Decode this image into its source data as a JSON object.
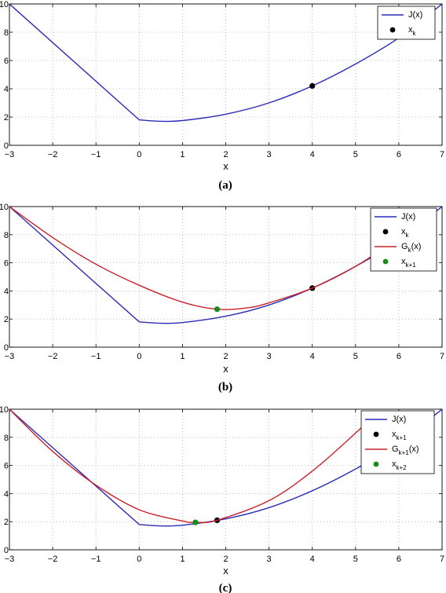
{
  "chart_data": [
    {
      "type": "line",
      "caption": "(a)",
      "xlabel": "x",
      "ylabel": "",
      "xlim": [
        -3,
        7
      ],
      "ylim": [
        0,
        10
      ],
      "xticks": [
        "−3",
        "−2",
        "−1",
        "0",
        "1",
        "2",
        "3",
        "4",
        "5",
        "6",
        "7"
      ],
      "yticks": [
        "0",
        "2",
        "4",
        "6",
        "8",
        "10"
      ],
      "grid": true,
      "legend_position": "top-right",
      "series": [
        {
          "name": "J(x)",
          "kind": "J",
          "color": "#2b2bb8",
          "points": [
            [
              -3,
              10.0
            ],
            [
              0,
              1.8
            ],
            [
              0.5,
              1.7
            ],
            [
              1,
              1.75
            ],
            [
              2,
              2.2
            ],
            [
              3,
              3.0
            ],
            [
              4,
              4.2
            ],
            [
              5,
              5.75
            ],
            [
              6,
              7.6
            ],
            [
              7,
              10.0
            ]
          ]
        },
        {
          "name": "x",
          "sub": "k",
          "kind": "point",
          "color": "#000000",
          "points": [
            [
              4,
              4.2
            ]
          ]
        }
      ]
    },
    {
      "type": "line",
      "caption": "(b)",
      "xlabel": "x",
      "ylabel": "",
      "xlim": [
        -3,
        7
      ],
      "ylim": [
        0,
        10
      ],
      "xticks": [
        "−3",
        "−2",
        "−1",
        "0",
        "1",
        "2",
        "3",
        "4",
        "5",
        "6",
        "7"
      ],
      "yticks": [
        "0",
        "2",
        "4",
        "6",
        "8",
        "10"
      ],
      "grid": true,
      "legend_position": "top-right",
      "series": [
        {
          "name": "J(x)",
          "kind": "J",
          "color": "#2b2bb8",
          "points": [
            [
              -3,
              10.0
            ],
            [
              0,
              1.8
            ],
            [
              0.5,
              1.7
            ],
            [
              1,
              1.75
            ],
            [
              2,
              2.2
            ],
            [
              3,
              3.0
            ],
            [
              4,
              4.2
            ],
            [
              5,
              5.75
            ],
            [
              6,
              7.6
            ],
            [
              7,
              10.0
            ]
          ]
        },
        {
          "name": "x",
          "sub": "k",
          "kind": "point",
          "color": "#000000",
          "points": [
            [
              4,
              4.2
            ]
          ]
        },
        {
          "name": "G",
          "sub": "k",
          "suffix": "(x)",
          "kind": "G",
          "color": "#c8222a",
          "points": [
            [
              -3,
              10.0
            ],
            [
              -2,
              7.8
            ],
            [
              -1,
              5.9
            ],
            [
              0,
              4.4
            ],
            [
              1,
              3.2
            ],
            [
              1.8,
              2.7
            ],
            [
              2.5,
              2.8
            ],
            [
              3,
              3.15
            ],
            [
              4,
              4.2
            ],
            [
              5,
              5.75
            ],
            [
              6,
              7.8
            ],
            [
              6.6,
              9.3
            ]
          ]
        },
        {
          "name": "x",
          "sub": "k+1",
          "kind": "point",
          "color": "#1a8a1a",
          "points": [
            [
              1.8,
              2.7
            ]
          ]
        }
      ]
    },
    {
      "type": "line",
      "caption": "(c)",
      "xlabel": "x",
      "ylabel": "",
      "xlim": [
        -3,
        7
      ],
      "ylim": [
        0,
        10
      ],
      "xticks": [
        "−3",
        "−2",
        "−1",
        "0",
        "1",
        "2",
        "3",
        "4",
        "5",
        "6",
        "7"
      ],
      "yticks": [
        "0",
        "2",
        "4",
        "6",
        "8",
        "10"
      ],
      "grid": true,
      "legend_position": "top-right",
      "series": [
        {
          "name": "J(x)",
          "kind": "J",
          "color": "#2b2bb8",
          "points": [
            [
              -3,
              10.0
            ],
            [
              0,
              1.8
            ],
            [
              0.5,
              1.7
            ],
            [
              1,
              1.75
            ],
            [
              2,
              2.2
            ],
            [
              3,
              3.0
            ],
            [
              4,
              4.2
            ],
            [
              5,
              5.75
            ],
            [
              6,
              7.6
            ],
            [
              7,
              10.0
            ]
          ]
        },
        {
          "name": "x",
          "sub": "k+1",
          "kind": "point",
          "color": "#000000",
          "points": [
            [
              1.8,
              2.1
            ]
          ]
        },
        {
          "name": "G",
          "sub": "k+1",
          "suffix": "(x)",
          "kind": "G",
          "color": "#c8222a",
          "points": [
            [
              -3,
              10.0
            ],
            [
              -2,
              7.0
            ],
            [
              -1,
              4.6
            ],
            [
              0,
              2.85
            ],
            [
              1,
              2.05
            ],
            [
              1.3,
              1.95
            ],
            [
              1.8,
              2.1
            ],
            [
              3,
              3.5
            ],
            [
              4,
              5.6
            ],
            [
              5,
              8.3
            ],
            [
              5.5,
              9.8
            ]
          ]
        },
        {
          "name": "x",
          "sub": "k+2",
          "kind": "point",
          "color": "#1a8a1a",
          "points": [
            [
              1.3,
              1.95
            ]
          ]
        }
      ]
    }
  ]
}
